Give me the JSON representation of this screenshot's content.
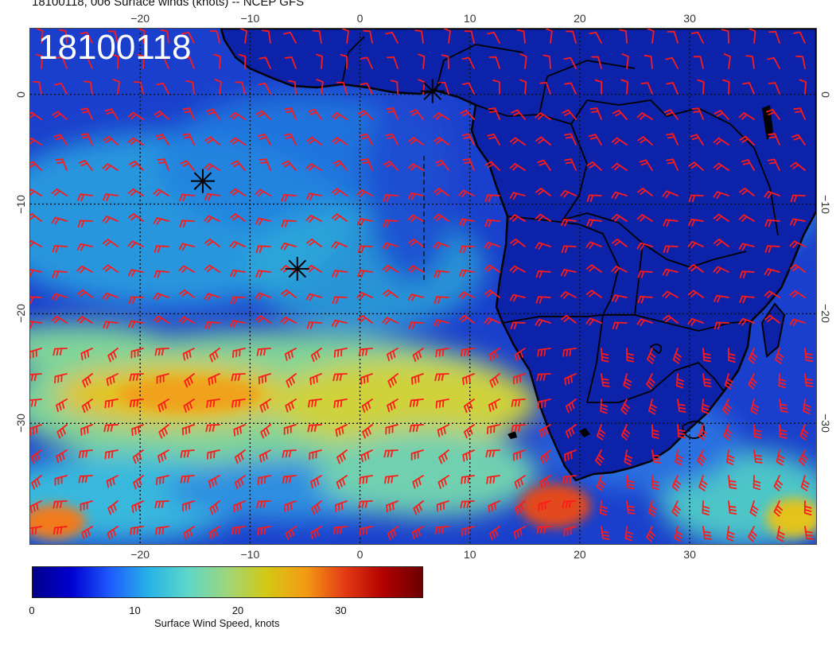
{
  "title": "18100118, 006 Surface winds (knots) -- NCEP GFS",
  "run_label": "18100118",
  "x_ticks": [
    "−20",
    "−10",
    "0",
    "10",
    "20",
    "30"
  ],
  "y_ticks": [
    "0",
    "−10",
    "−20",
    "−30"
  ],
  "colorbar": {
    "label": "Surface Wind Speed, knots",
    "ticks": [
      "0",
      "10",
      "20",
      "30"
    ],
    "min": 0,
    "max": 38,
    "colors": [
      "#00008b",
      "#0000d0",
      "#1e5cff",
      "#28b4e6",
      "#5fd7c8",
      "#9ed67a",
      "#d4c814",
      "#f39b14",
      "#e43b14",
      "#b20000",
      "#6a0000"
    ]
  },
  "map_extent": {
    "lon": [
      -30,
      41.5
    ],
    "lat": [
      -41,
      6
    ]
  },
  "graticule": {
    "lon": [
      -20,
      -10,
      0,
      10,
      20,
      30
    ],
    "lat": [
      0,
      -10,
      -20,
      -30
    ]
  },
  "markers": [
    {
      "name": "asterisk",
      "lon": 6.6,
      "lat": 0.3
    },
    {
      "name": "asterisk",
      "lon": -14.3,
      "lat": -7.9
    },
    {
      "name": "asterisk",
      "lon": -5.7,
      "lat": -15.9
    }
  ],
  "colors": {
    "barbs": "#ff1a1a",
    "coast": "#000000",
    "ocean_base": "#1a3fcc",
    "land_base": "#0a1fa6"
  }
}
